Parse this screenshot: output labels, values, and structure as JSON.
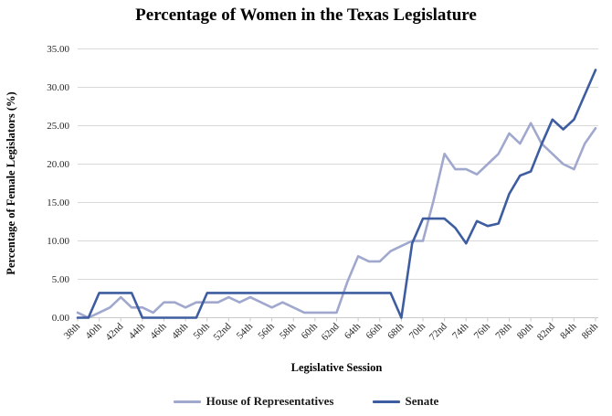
{
  "title": "Percentage of Women in the Texas Legislature",
  "chart_data": {
    "type": "line",
    "title": "Percentage of Women in the Texas Legislature",
    "xlabel": "Legislative Session",
    "ylabel": "Percentage of Female Legislators (%)",
    "ylim": [
      0,
      35
    ],
    "y_tick_step": 5,
    "y_tick_labels": [
      "0.00",
      "5.00",
      "10.00",
      "15.00",
      "20.00",
      "25.00",
      "30.00",
      "35.00"
    ],
    "grid": true,
    "legend_position": "bottom",
    "x_label_every": 2,
    "categories": [
      "38th",
      "39th",
      "40th",
      "41st",
      "42nd",
      "43rd",
      "44th",
      "45th",
      "46th",
      "47th",
      "48th",
      "49th",
      "50th",
      "51st",
      "52nd",
      "53rd",
      "54th",
      "55th",
      "56th",
      "57th",
      "58th",
      "59th",
      "60th",
      "61st",
      "62nd",
      "63rd",
      "64th",
      "65th",
      "66th",
      "67th",
      "68th",
      "69th",
      "70th",
      "71st",
      "72nd",
      "73rd",
      "74th",
      "75th",
      "76th",
      "77th",
      "78th",
      "79th",
      "80th",
      "81st",
      "82nd",
      "83rd",
      "84th",
      "85th",
      "86th"
    ],
    "x_tick_labels_shown": [
      "38th",
      "40th",
      "42nd",
      "44th",
      "46th",
      "48th",
      "50th",
      "52nd",
      "54th",
      "56th",
      "58th",
      "60th",
      "62nd",
      "64th",
      "66th",
      "68th",
      "70th",
      "72nd",
      "74th",
      "76th",
      "78th",
      "80th",
      "82nd",
      "84th",
      "86th"
    ],
    "series": [
      {
        "name": "House of Representatives",
        "color": "#A0A8CE",
        "values": [
          0.67,
          0.0,
          0.67,
          1.33,
          2.67,
          1.33,
          1.33,
          0.67,
          2.0,
          2.0,
          1.33,
          2.0,
          2.0,
          2.0,
          2.67,
          2.0,
          2.67,
          2.0,
          1.33,
          2.0,
          1.33,
          0.67,
          0.67,
          0.67,
          0.67,
          4.67,
          8.0,
          7.33,
          7.33,
          8.67,
          9.33,
          10.0,
          10.0,
          15.33,
          21.33,
          19.33,
          19.33,
          18.67,
          20.0,
          21.33,
          24.0,
          22.67,
          25.33,
          22.67,
          21.33,
          20.0,
          19.33,
          22.67,
          24.67
        ]
      },
      {
        "name": "Senate",
        "color": "#3E5DA0",
        "values": [
          0.0,
          0.0,
          3.23,
          3.23,
          3.23,
          3.23,
          0.0,
          0.0,
          0.0,
          0.0,
          0.0,
          0.0,
          3.23,
          3.23,
          3.23,
          3.23,
          3.23,
          3.23,
          3.23,
          3.23,
          3.23,
          3.23,
          3.23,
          3.23,
          3.23,
          3.23,
          3.23,
          3.23,
          3.23,
          3.23,
          0.0,
          9.68,
          12.9,
          12.9,
          12.9,
          11.7,
          9.68,
          12.58,
          11.94,
          12.26,
          16.13,
          18.5,
          19.05,
          22.58,
          25.81,
          24.52,
          25.81,
          29.03,
          32.26
        ]
      }
    ]
  }
}
